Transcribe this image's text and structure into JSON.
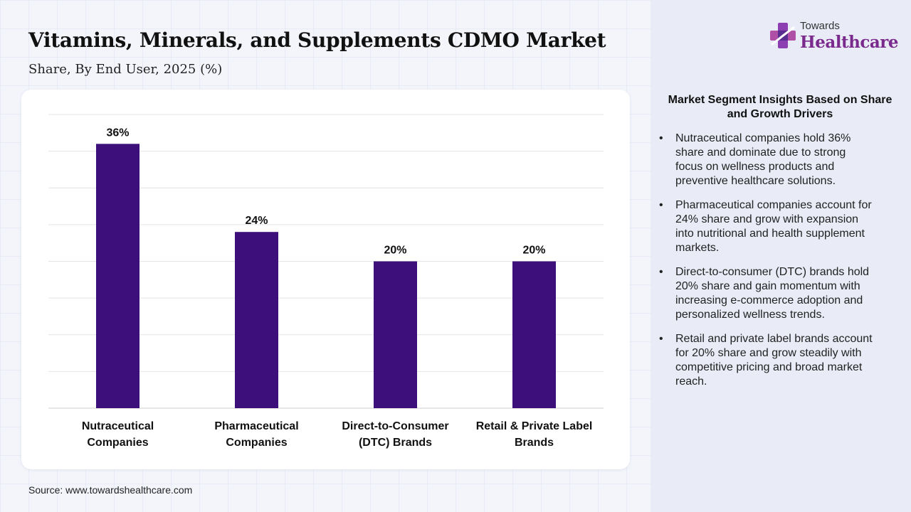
{
  "title": "Vitamins, Minerals, and Supplements CDMO Market",
  "subtitle": "Share, By End User, 2025 (%)",
  "source": "Source: www.towardshealthcare.com",
  "logo": {
    "small_text": "Towards",
    "big_text": "Healthcare",
    "mark_icon": "medical-cross-icon"
  },
  "colors": {
    "bar": "#3d0f7a",
    "logo_text": "#7a2a8c",
    "panel": "#e9ecf7"
  },
  "insights": {
    "heading": "Market Segment Insights Based on Share and Growth Drivers",
    "items": [
      "Nutraceutical companies hold 36% share and dominate due to strong focus on wellness products and preventive healthcare solutions.",
      "Pharmaceutical companies account for 24% share and grow with expansion into nutritional and health supplement markets.",
      "Direct-to-consumer (DTC) brands hold 20% share and gain momentum with increasing e-commerce adoption and personalized wellness trends.",
      "Retail and private label brands account for 20% share and grow steadily with competitive pricing and broad market reach."
    ]
  },
  "chart_data": {
    "type": "bar",
    "categories": [
      [
        "Nutraceutical",
        "Companies"
      ],
      [
        "Pharmaceutical",
        "Companies"
      ],
      [
        "Direct-to-Consumer",
        "(DTC) Brands"
      ],
      [
        "Retail & Private Label",
        "Brands"
      ]
    ],
    "values": [
      36,
      24,
      20,
      20
    ],
    "data_labels": [
      "36%",
      "24%",
      "20%",
      "20%"
    ],
    "ylim": [
      0,
      40
    ],
    "grid": true,
    "gridline_count": 8,
    "xlabel": "",
    "ylabel": ""
  }
}
